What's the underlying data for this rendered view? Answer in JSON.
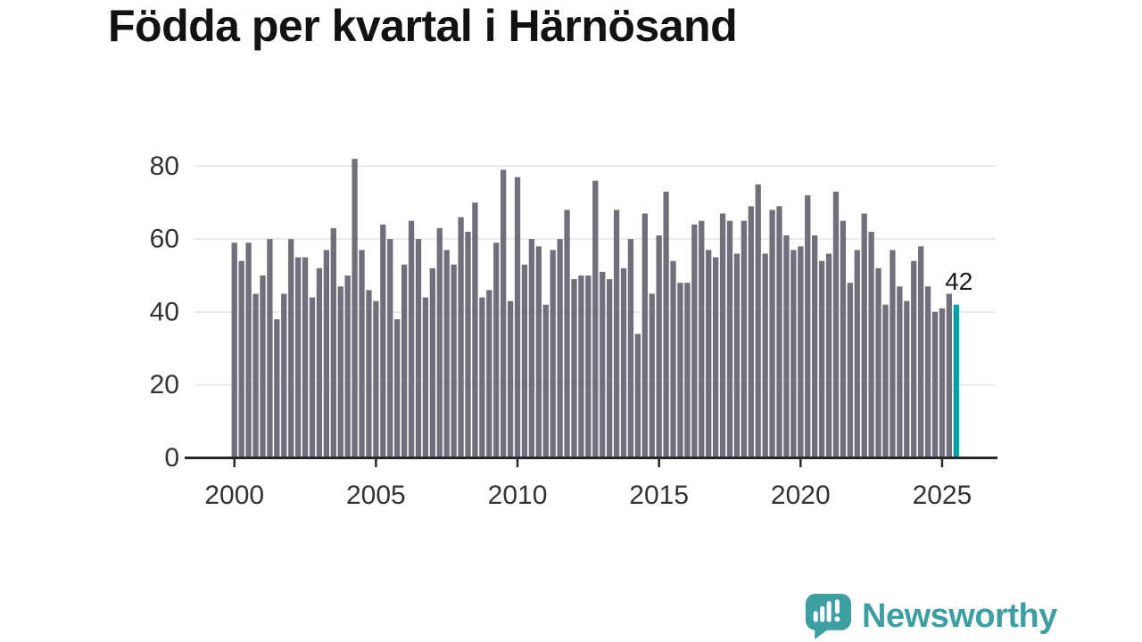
{
  "title": "Födda per kvartal i Härnösand",
  "chart_data": {
    "type": "bar",
    "title": "Födda per kvartal i Härnösand",
    "x_start": "2000 Q1",
    "x_end": "2025 Q3",
    "values": [
      59,
      54,
      59,
      45,
      50,
      60,
      38,
      45,
      60,
      55,
      55,
      44,
      52,
      57,
      63,
      47,
      50,
      82,
      57,
      46,
      43,
      64,
      60,
      38,
      53,
      65,
      60,
      44,
      52,
      63,
      57,
      53,
      66,
      62,
      70,
      44,
      46,
      59,
      79,
      43,
      77,
      53,
      60,
      58,
      42,
      57,
      60,
      68,
      49,
      50,
      50,
      76,
      51,
      49,
      68,
      52,
      60,
      34,
      67,
      45,
      61,
      73,
      54,
      48,
      48,
      64,
      65,
      57,
      55,
      67,
      65,
      56,
      65,
      69,
      75,
      56,
      68,
      69,
      61,
      57,
      58,
      72,
      61,
      54,
      56,
      73,
      65,
      48,
      57,
      67,
      62,
      52,
      42,
      57,
      47,
      43,
      54,
      58,
      47,
      40,
      41,
      45,
      42
    ],
    "y_ticks": [
      "0",
      "20",
      "40",
      "60",
      "80"
    ],
    "x_tick_labels": [
      "2000",
      "2005",
      "2010",
      "2015",
      "2020",
      "2025"
    ],
    "x_tick_indices": [
      0,
      20,
      40,
      60,
      80,
      100
    ],
    "ylim": [
      0,
      85
    ],
    "grid": "horizontal",
    "legend": "none",
    "bar_color": "#70707a",
    "axis_color": "#28282c",
    "grid_color": "#e6e6e6",
    "tick_label_color": "#333333",
    "highlight": {
      "index": 102,
      "value": 42,
      "label": "42",
      "color": "#00a1a5",
      "label_color": "#1d1d1d"
    }
  },
  "branding": {
    "logo_text": "Newsworthy",
    "logo_color": "#3e9fa1",
    "logo_icon": "bar-chart-speech-bubble-icon"
  }
}
